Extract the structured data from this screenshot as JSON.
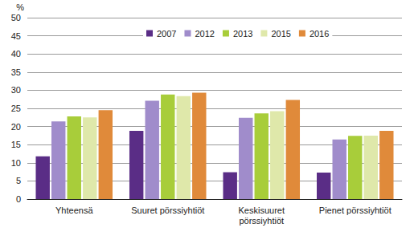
{
  "chart_data": {
    "type": "bar",
    "y_label": "%",
    "categories": [
      "Yhteensä",
      "Suuret pörssiyhtiöt",
      "Keskisuuret\npörssiyhtiöt",
      "Pienet pörssiyhtiöt"
    ],
    "series": [
      {
        "name": "2007",
        "color": "#5a2d86",
        "values": [
          11.8,
          18.8,
          7.4,
          7.3
        ]
      },
      {
        "name": "2012",
        "color": "#a08ccb",
        "values": [
          21.4,
          27.1,
          22.4,
          16.4
        ]
      },
      {
        "name": "2013",
        "color": "#a8cd3a",
        "values": [
          22.8,
          28.8,
          23.6,
          17.4
        ]
      },
      {
        "name": "2015",
        "color": "#dfe8aa",
        "values": [
          22.5,
          28.4,
          24.2,
          17.5
        ]
      },
      {
        "name": "2016",
        "color": "#e08a3a",
        "values": [
          24.5,
          29.3,
          27.3,
          18.8
        ]
      }
    ],
    "ylim": [
      0,
      50
    ],
    "yticks": [
      0,
      5,
      10,
      15,
      20,
      25,
      30,
      35,
      40,
      45,
      50
    ],
    "grid": true,
    "legend": "top"
  }
}
